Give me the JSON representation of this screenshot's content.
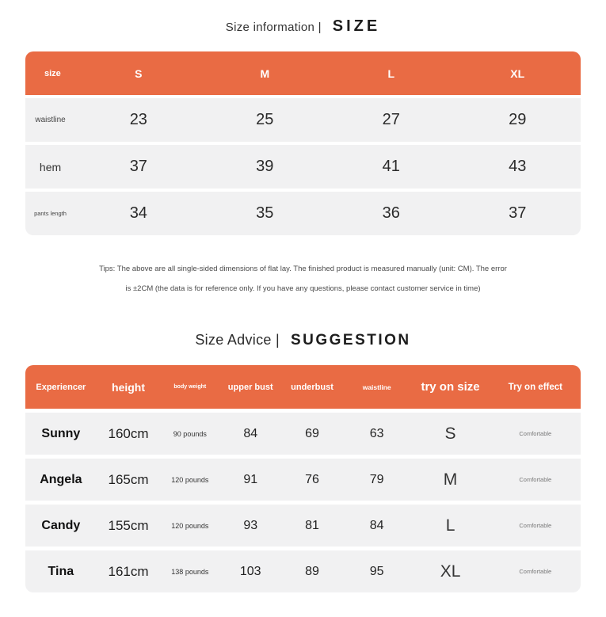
{
  "colors": {
    "accent_orange": "#E96B44",
    "row_gray": "#F1F1F2",
    "text_dark": "#222222",
    "tips_gray": "#4a4a4a",
    "effect_gray": "#777777"
  },
  "section_size": {
    "title_left": "Size information |",
    "title_right": "SIZE",
    "table": {
      "header": [
        "size",
        "S",
        "M",
        "L",
        "XL"
      ],
      "rows": [
        {
          "label": "waistline",
          "values": [
            "23",
            "25",
            "27",
            "29"
          ]
        },
        {
          "label": "hem",
          "values": [
            "37",
            "39",
            "41",
            "43"
          ]
        },
        {
          "label": "pants length",
          "values": [
            "34",
            "35",
            "36",
            "37"
          ]
        }
      ]
    },
    "tips_line1": "Tips: The above are all single-sided dimensions of flat lay. The finished product is measured manually (unit: CM). The error",
    "tips_line2": "is ±2CM (the data is for reference only. If you have any questions, please contact customer service in time)"
  },
  "section_suggestion": {
    "title_left": "Size Advice |",
    "title_right": "SUGGESTION",
    "table": {
      "header": [
        "Experiencer",
        "height",
        "body weight",
        "upper bust",
        "underbust",
        "waistline",
        "try on size",
        "Try on effect"
      ],
      "rows": [
        {
          "name": "Sunny",
          "height": "160cm",
          "weight": "90 pounds",
          "upper_bust": "84",
          "underbust": "69",
          "waistline": "63",
          "size": "S",
          "effect": "Comfortable"
        },
        {
          "name": "Angela",
          "height": "165cm",
          "weight": "120 pounds",
          "upper_bust": "91",
          "underbust": "76",
          "waistline": "79",
          "size": "M",
          "effect": "Comfortable"
        },
        {
          "name": "Candy",
          "height": "155cm",
          "weight": "120 pounds",
          "upper_bust": "93",
          "underbust": "81",
          "waistline": "84",
          "size": "L",
          "effect": "Comfortable"
        },
        {
          "name": "Tina",
          "height": "161cm",
          "weight": "138 pounds",
          "upper_bust": "103",
          "underbust": "89",
          "waistline": "95",
          "size": "XL",
          "effect": "Comfortable"
        }
      ]
    }
  }
}
